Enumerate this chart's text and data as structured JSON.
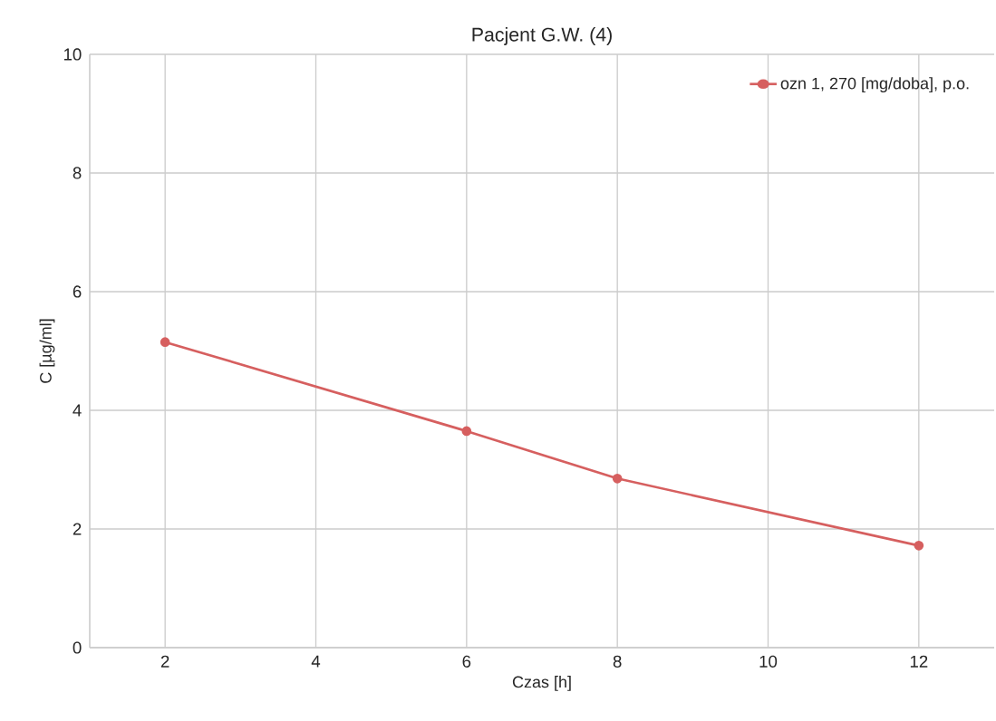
{
  "chart_data": {
    "type": "line",
    "title": "Pacjent G.W. (4)",
    "xlabel": "Czas [h]",
    "ylabel": "C [µg/ml]",
    "x": [
      2,
      6,
      8,
      12
    ],
    "series": [
      {
        "name": "ozn 1, 270 [mg/doba], p.o.",
        "color": "#d65f5f",
        "values": [
          5.15,
          3.65,
          2.85,
          1.72
        ]
      }
    ],
    "xlim": [
      1,
      13
    ],
    "ylim": [
      0,
      10
    ],
    "xticks": [
      2,
      4,
      6,
      8,
      10,
      12
    ],
    "yticks": [
      0,
      2,
      4,
      6,
      8,
      10
    ],
    "grid": true,
    "legend": "top right",
    "marker": "circle",
    "line_style": "solid"
  }
}
